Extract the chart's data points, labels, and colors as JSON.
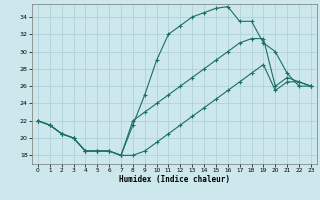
{
  "xlabel": "Humidex (Indice chaleur)",
  "bg_color": "#cce8ed",
  "grid_color": "#aacdd5",
  "line_color": "#1a7060",
  "xlim": [
    -0.5,
    23.5
  ],
  "ylim": [
    17.0,
    35.5
  ],
  "yticks": [
    18,
    20,
    22,
    24,
    26,
    28,
    30,
    32,
    34
  ],
  "xticks": [
    0,
    1,
    2,
    3,
    4,
    5,
    6,
    7,
    8,
    9,
    10,
    11,
    12,
    13,
    14,
    15,
    16,
    17,
    18,
    19,
    20,
    21,
    22,
    23
  ],
  "line1_x": [
    0,
    1,
    2,
    3,
    4,
    5,
    6,
    7,
    8,
    9,
    10,
    11,
    12,
    13,
    14,
    15,
    16,
    17,
    18,
    19,
    20,
    21,
    22,
    23
  ],
  "line1_y": [
    22.0,
    21.5,
    20.5,
    20.0,
    18.5,
    18.5,
    18.5,
    18.0,
    18.0,
    18.5,
    19.5,
    20.5,
    21.5,
    22.5,
    23.5,
    24.5,
    25.5,
    26.5,
    27.5,
    28.5,
    25.5,
    26.5,
    26.5,
    26.0
  ],
  "line2_x": [
    0,
    1,
    2,
    3,
    4,
    5,
    6,
    7,
    8,
    9,
    10,
    11,
    12,
    13,
    14,
    15,
    16,
    17,
    18,
    19,
    20,
    21,
    22,
    23
  ],
  "line2_y": [
    22.0,
    21.5,
    20.5,
    20.0,
    18.5,
    18.5,
    18.5,
    18.0,
    21.5,
    25.0,
    29.0,
    32.0,
    33.0,
    34.0,
    34.5,
    35.0,
    35.2,
    33.5,
    33.5,
    31.0,
    30.0,
    27.5,
    26.0,
    26.0
  ],
  "line3_x": [
    0,
    1,
    2,
    3,
    4,
    5,
    6,
    7,
    8,
    9,
    10,
    11,
    12,
    13,
    14,
    15,
    16,
    17,
    18,
    19,
    20,
    21,
    22,
    23
  ],
  "line3_y": [
    22.0,
    21.5,
    20.5,
    20.0,
    18.5,
    18.5,
    18.5,
    18.0,
    22.0,
    23.0,
    24.0,
    25.0,
    26.0,
    27.0,
    28.0,
    29.0,
    30.0,
    31.0,
    31.5,
    31.5,
    26.0,
    27.0,
    26.5,
    26.0
  ]
}
